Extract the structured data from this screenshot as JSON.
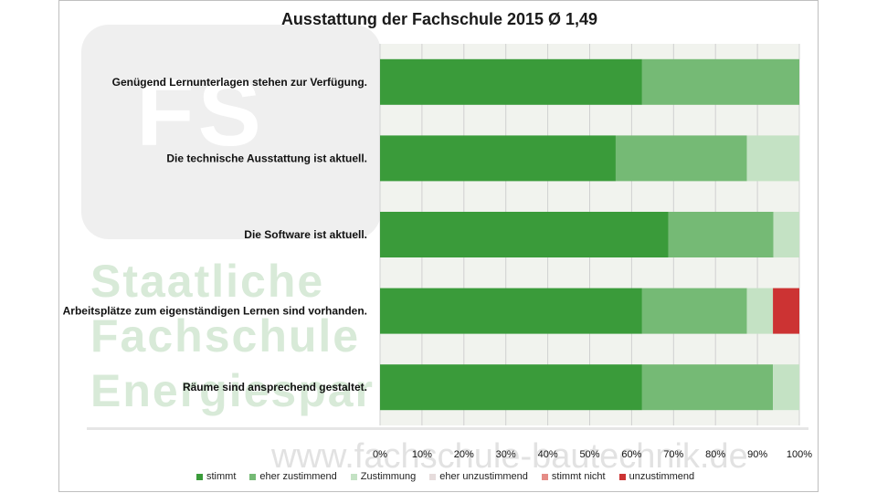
{
  "watermark": {
    "logo_letters": "FS",
    "lines": [
      "Staatliche",
      "Fachschule",
      "Energiespar"
    ],
    "url": "www.fachschule-bautechnik.de"
  },
  "chart_data": {
    "type": "bar",
    "stacked": true,
    "orientation": "horizontal",
    "title": "Ausstattung der Fachschule 2015 Ø 1,49",
    "categories": [
      "Genügend Lernunterlagen stehen zur Verfügung.",
      "Die technische Ausstattung ist aktuell.",
      "Die Software ist aktuell.",
      "Arbeitsplätze zum eigenständigen Lernen sind vorhanden.",
      "Räume sind ansprechend gestaltet."
    ],
    "series": [
      {
        "name": "stimmt",
        "color": "#3a9b3a",
        "values": [
          62.5,
          56.2,
          68.8,
          62.5,
          62.5
        ]
      },
      {
        "name": "eher zustimmend",
        "color": "#75ba75",
        "values": [
          37.5,
          31.3,
          25.0,
          25.0,
          31.2
        ]
      },
      {
        "name": "Zustimmung",
        "color": "#c4e2c4",
        "values": [
          0,
          12.5,
          6.2,
          6.2,
          6.3
        ]
      },
      {
        "name": "eher unzustimmend",
        "color": "#e6dcdc",
        "values": [
          0,
          0,
          0,
          0,
          0
        ]
      },
      {
        "name": "stimmt nicht",
        "color": "#e58c86",
        "values": [
          0,
          0,
          0,
          0,
          0
        ]
      },
      {
        "name": "unzustimmend",
        "color": "#cc3333",
        "values": [
          0,
          0,
          0,
          6.3,
          0
        ]
      }
    ],
    "x_ticks": [
      "0%",
      "10%",
      "20%",
      "30%",
      "40%",
      "50%",
      "60%",
      "70%",
      "80%",
      "90%",
      "100%"
    ],
    "xlim": [
      0,
      100
    ],
    "grid": true,
    "legend_position": "bottom"
  }
}
